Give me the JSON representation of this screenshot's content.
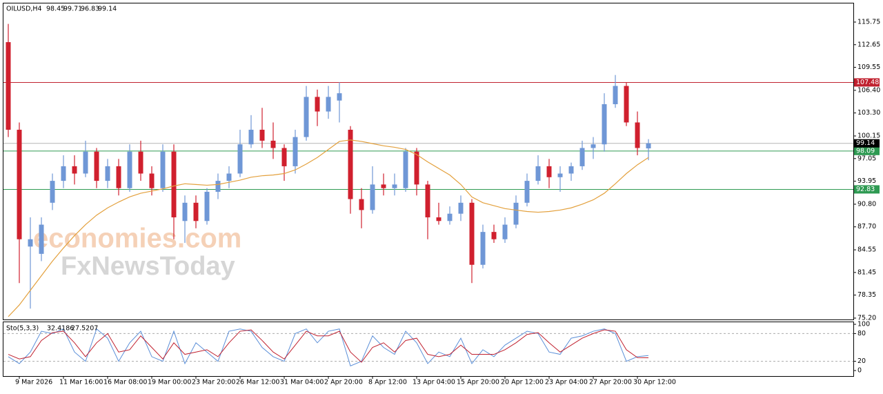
{
  "chart_data": {
    "type": "candlestick",
    "title": "OILUSD,H4",
    "watermark": [
      "economies.com",
      "FxNewsToday"
    ],
    "categories": [
      null,
      "9 Mar 2026",
      null,
      null,
      null,
      "11 Mar 16:00",
      null,
      null,
      null,
      "16 Mar 08:00",
      null,
      null,
      null,
      "19 Mar 00:00",
      null,
      null,
      null,
      "23 Mar 20:00",
      null,
      null,
      null,
      "26 Mar 12:00",
      null,
      null,
      null,
      "31 Mar 04:00",
      null,
      null,
      null,
      "2 Apr 20:00",
      null,
      null,
      null,
      "8 Apr 12:00",
      null,
      null,
      null,
      "13 Apr 04:00",
      null,
      null,
      null,
      "15 Apr 20:00",
      null,
      null,
      null,
      "20 Apr 12:00",
      null,
      null,
      null,
      "23 Apr 04:00",
      null,
      null,
      null,
      "27 Apr 20:00",
      null,
      null,
      null,
      "30 Apr 12:00",
      null
    ],
    "open": [
      113,
      101,
      85,
      84,
      91,
      94,
      96,
      95,
      98,
      94,
      96,
      93,
      98,
      95,
      93,
      98,
      88.5,
      91,
      88.5,
      92.5,
      94,
      95,
      99,
      101,
      99.5,
      98.5,
      96,
      100,
      105.5,
      103.5,
      105,
      101,
      91.5,
      90,
      93.5,
      93,
      93,
      98,
      93.5,
      89,
      88.5,
      89.5,
      91,
      82.5,
      87,
      86,
      88,
      91,
      94,
      96,
      94.5,
      95,
      96,
      98.5,
      99,
      104.5,
      107,
      102,
      98.45
    ],
    "high": [
      115.5,
      102,
      89,
      89,
      95,
      97.5,
      97.5,
      99.5,
      98.5,
      97,
      97,
      99,
      99.5,
      96,
      99,
      99,
      92,
      92,
      93,
      95,
      96,
      101,
      103,
      104,
      102,
      99,
      101,
      107,
      106.5,
      107,
      107.5,
      101.5,
      93,
      96,
      95,
      95,
      98.5,
      98.5,
      94,
      91,
      90.5,
      92,
      91.5,
      88,
      88,
      89,
      92,
      95,
      97.5,
      97,
      96,
      96.5,
      99.5,
      100,
      106,
      108.5,
      107.5,
      103.5,
      99.71
    ],
    "low": [
      100,
      80,
      76.5,
      83,
      90,
      93,
      93.5,
      94.5,
      93,
      93,
      92,
      92.5,
      94,
      92,
      92.5,
      86,
      85.5,
      87.5,
      88,
      91.5,
      93,
      94.5,
      98.5,
      98.5,
      97,
      94,
      95,
      99.5,
      101.5,
      102.5,
      102,
      89.5,
      87.5,
      89.5,
      92,
      92,
      92.5,
      92,
      86,
      88,
      88,
      88.5,
      80,
      82,
      85.5,
      85.5,
      87.5,
      90.5,
      93.5,
      93,
      92.5,
      94,
      95.5,
      97,
      98,
      104,
      101.5,
      97.5,
      96.83
    ],
    "close": [
      101,
      86,
      86,
      88,
      94,
      96,
      95,
      98,
      94,
      96,
      93,
      98,
      95,
      93,
      98,
      89,
      91,
      88.5,
      92.5,
      94,
      95,
      99,
      101,
      99.5,
      98.5,
      96,
      100,
      105.5,
      103.5,
      105.5,
      106,
      91.5,
      90,
      93.5,
      93,
      93.5,
      98,
      93.5,
      89,
      88.5,
      89.5,
      91,
      82.5,
      87,
      86,
      88,
      91,
      94,
      96,
      94.5,
      95,
      96,
      98.5,
      99,
      104.5,
      107,
      102,
      98.5,
      99.14
    ],
    "bull_color": "#6f97d6",
    "bear_color": "#d0202e",
    "ma": {
      "color": "#e3a03c",
      "values": [
        75.4,
        77,
        79,
        81,
        83,
        84.8,
        86.5,
        88,
        89.3,
        90.3,
        91.1,
        91.8,
        92.3,
        92.6,
        92.9,
        93.3,
        93.6,
        93.5,
        93.4,
        93.5,
        93.8,
        94.1,
        94.5,
        94.7,
        94.8,
        95,
        95.5,
        96.3,
        97.2,
        98.3,
        99.4,
        99.6,
        99.4,
        99.1,
        98.8,
        98.6,
        98.3,
        97.6,
        96.6,
        95.7,
        94.8,
        93.5,
        91.8,
        91,
        90.6,
        90.2,
        90,
        89.8,
        89.7,
        89.8,
        90,
        90.3,
        90.8,
        91.4,
        92.3,
        93.6,
        95,
        96.2,
        97.2
      ]
    },
    "hlines": [
      {
        "value": 107.48,
        "color": "#c0202e"
      },
      {
        "value": 98.09,
        "color": "#2e9a52"
      },
      {
        "value": 92.83,
        "color": "#2e9a52"
      }
    ],
    "current_price_color": "#000000",
    "ylim": [
      75.01,
      118.3
    ],
    "yticks": [
      115.75,
      112.65,
      109.55,
      {
        "value": 106.4,
        "label": "106.40"
      },
      {
        "value": 103.3,
        "label": "103.30"
      },
      100.15,
      97.05,
      93.95,
      {
        "value": 90.8,
        "label": "90.80"
      },
      {
        "value": 87.7,
        "label": "87.70"
      },
      84.55,
      81.45,
      78.35,
      {
        "value": 75.2,
        "label": "75.20"
      }
    ],
    "stochastic": {
      "label": "Sto(5,3,3)",
      "k_color": "#5b8fd8",
      "d_color": "#c0202e",
      "k": [
        30,
        15,
        40,
        85,
        80,
        90,
        40,
        20,
        90,
        70,
        20,
        60,
        85,
        30,
        20,
        85,
        15,
        60,
        40,
        20,
        85,
        90,
        85,
        50,
        30,
        20,
        80,
        90,
        60,
        85,
        90,
        10,
        20,
        75,
        50,
        35,
        85,
        60,
        15,
        40,
        30,
        70,
        15,
        45,
        30,
        55,
        70,
        85,
        80,
        40,
        35,
        70,
        75,
        85,
        90,
        80,
        20,
        30,
        32.4186
      ],
      "d": [
        35,
        25,
        30,
        65,
        82,
        85,
        60,
        30,
        60,
        80,
        40,
        45,
        75,
        50,
        25,
        60,
        35,
        40,
        45,
        30,
        60,
        85,
        88,
        65,
        40,
        25,
        55,
        85,
        75,
        75,
        85,
        40,
        18,
        50,
        60,
        40,
        65,
        70,
        35,
        30,
        35,
        55,
        35,
        35,
        35,
        45,
        60,
        78,
        82,
        60,
        40,
        55,
        70,
        80,
        88,
        85,
        45,
        28,
        27.5207
      ],
      "ylim": [
        0,
        100
      ],
      "yticks": [
        100,
        80,
        20,
        0
      ],
      "levels": [
        80,
        20
      ]
    }
  }
}
